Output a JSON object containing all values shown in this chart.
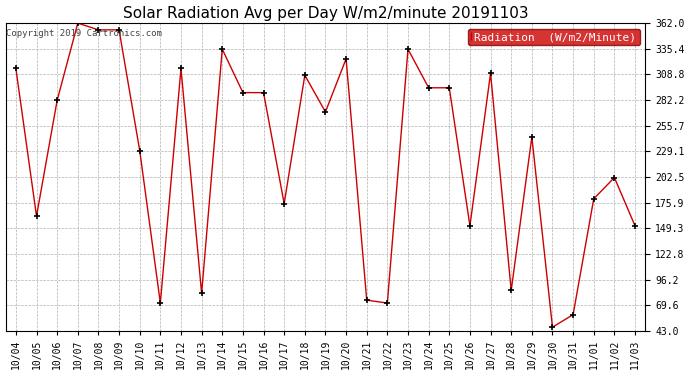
{
  "title": "Solar Radiation Avg per Day W/m2/minute 20191103",
  "copyright": "Copyright 2019 Cartronics.com",
  "legend_label": "Radiation  (W/m2/Minute)",
  "background_color": "#ffffff",
  "plot_bg_color": "#ffffff",
  "line_color": "#cc0000",
  "marker_color": "#000000",
  "grid_color": "#b0b0b0",
  "dates": [
    "10/04",
    "10/05",
    "10/06",
    "10/07",
    "10/08",
    "10/09",
    "10/10",
    "10/11",
    "10/12",
    "10/13",
    "10/14",
    "10/15",
    "10/16",
    "10/17",
    "10/18",
    "10/19",
    "10/20",
    "10/21",
    "10/22",
    "10/23",
    "10/24",
    "10/25",
    "10/26",
    "10/27",
    "10/28",
    "10/29",
    "10/30",
    "10/31",
    "11/01",
    "11/02",
    "11/03"
  ],
  "values": [
    315.0,
    162.0,
    282.0,
    362.0,
    355.0,
    355.0,
    230.0,
    72.0,
    315.0,
    82.0,
    335.0,
    290.0,
    290.0,
    175.0,
    308.0,
    270.0,
    325.0,
    75.0,
    72.0,
    335.0,
    295.0,
    295.0,
    152.0,
    310.0,
    85.0,
    244.0,
    47.0,
    60.0,
    180.0,
    202.0,
    152.0
  ],
  "ylim": [
    43.0,
    362.0
  ],
  "yticks": [
    43.0,
    69.6,
    96.2,
    122.8,
    149.3,
    175.9,
    202.5,
    229.1,
    255.7,
    282.2,
    308.8,
    335.4,
    362.0
  ],
  "ytick_labels": [
    "43.0",
    "69.6",
    "96.2",
    "122.8",
    "149.3",
    "175.9",
    "202.5",
    "229.1",
    "255.7",
    "282.2",
    "308.8",
    "335.4",
    "362.0"
  ],
  "title_fontsize": 11,
  "tick_fontsize": 7,
  "copyright_fontsize": 6.5,
  "legend_fontsize": 8
}
